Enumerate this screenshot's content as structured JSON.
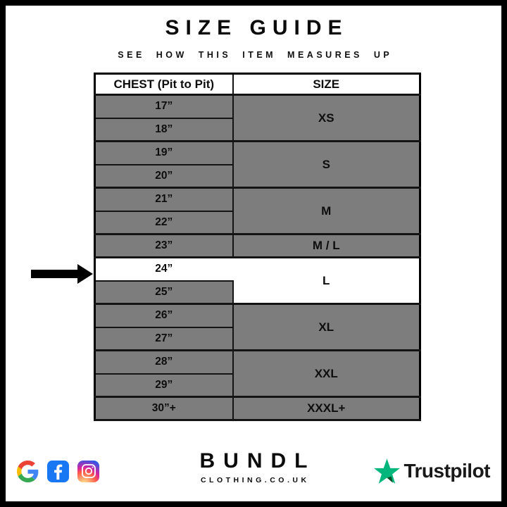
{
  "page": {
    "title": "SIZE GUIDE",
    "subtitle": "SEE HOW THIS ITEM MEASURES UP"
  },
  "table": {
    "headers": [
      "CHEST (Pit to Pit)",
      "SIZE"
    ],
    "groups": [
      {
        "size": "XS",
        "chest": [
          "17”",
          "18”"
        ],
        "highlighted": false
      },
      {
        "size": "S",
        "chest": [
          "19”",
          "20”"
        ],
        "highlighted": false
      },
      {
        "size": "M",
        "chest": [
          "21”",
          "22”"
        ],
        "highlighted": false
      },
      {
        "size": "M / L",
        "chest": [
          "23”"
        ],
        "highlighted": false
      },
      {
        "size": "L",
        "chest": [
          "24”",
          "25”"
        ],
        "highlighted": true,
        "highlighted_chest": "24”"
      },
      {
        "size": "XL",
        "chest": [
          "26”",
          "27”"
        ],
        "highlighted": false
      },
      {
        "size": "XXL",
        "chest": [
          "28”",
          "29”"
        ],
        "highlighted": false
      },
      {
        "size": "XXXL+",
        "chest": [
          "30”+"
        ],
        "highlighted": false
      }
    ],
    "colors": {
      "row_gray": "#7d7d7d",
      "highlight_white": "#ffffff",
      "border_black": "#141414"
    }
  },
  "annotation": {
    "arrow_points_to": "24”"
  },
  "footer": {
    "brand_name": "BUNDL",
    "brand_domain": "CLOTHING.CO.UK",
    "social_icons": [
      "google-icon",
      "facebook-icon",
      "instagram-icon"
    ],
    "trustpilot_label": "Trustpilot",
    "colors": {
      "trustpilot_green": "#00b67a",
      "trustpilot_dark_green": "#005128",
      "facebook_blue": "#1877f2"
    }
  },
  "chart_data": {
    "type": "table",
    "title": "SIZE GUIDE",
    "subtitle": "SEE HOW THIS ITEM MEASURES UP",
    "columns": [
      "CHEST (Pit to Pit)",
      "SIZE"
    ],
    "rows": [
      [
        "17”",
        "XS"
      ],
      [
        "18”",
        "XS"
      ],
      [
        "19”",
        "S"
      ],
      [
        "20”",
        "S"
      ],
      [
        "21”",
        "M"
      ],
      [
        "22”",
        "M"
      ],
      [
        "23”",
        "M / L"
      ],
      [
        "24”",
        "L"
      ],
      [
        "25”",
        "L"
      ],
      [
        "26”",
        "XL"
      ],
      [
        "27”",
        "XL"
      ],
      [
        "28”",
        "XXL"
      ],
      [
        "29”",
        "XXL"
      ],
      [
        "30”+",
        "XXXL+"
      ]
    ],
    "highlighted_row": "24”",
    "layout_hints": {
      "size_cells_merged_per_group": true,
      "gridlines": true
    }
  }
}
